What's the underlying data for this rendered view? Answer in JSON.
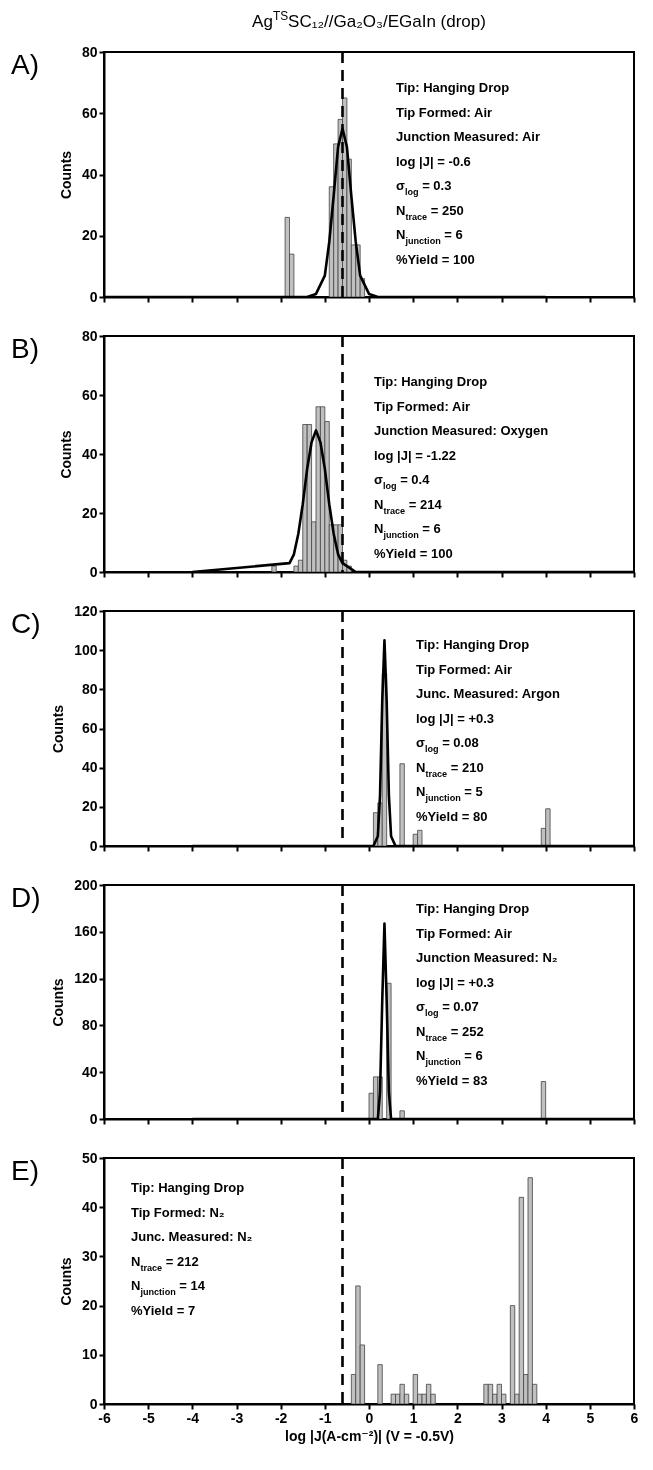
{
  "chart_data": [
    {
      "type": "histogram",
      "title": "Ag$^{TS}$SC₁₂//Ga₂O₃/EGaIn (drop)",
      "ylabel": "Counts",
      "xlim": [
        -6,
        6
      ],
      "xticks": [
        -6,
        -5,
        -4,
        -3,
        -2,
        -1,
        0,
        1,
        2,
        3,
        4,
        5,
        6
      ],
      "ylim": [
        0,
        80
      ],
      "yticks": [
        0,
        20,
        40,
        60,
        80
      ],
      "tick_labels": "y",
      "annotations": [
        "A)",
        "Tip:  Hanging Drop",
        "Tip Formed:  Air",
        "Junction Measured: Air",
        "log |J| = -0.6",
        "σ$_{log}$ = 0.3",
        "N$_{trace}$ = 250",
        "N$_{junction}$ = 6",
        "%Yield = 100"
      ],
      "ref_lines": [
        {
          "axis": "x",
          "value": -0.6,
          "color": "#000000",
          "line_style": "dashed"
        }
      ],
      "series": [
        {
          "type": "histogram",
          "color": "#c0c0c0",
          "bins": [
            -1.9,
            -1.8,
            -1.7,
            -1.6,
            -1.5,
            -1.4,
            -1.3,
            -1.2,
            -1.1,
            -1.0,
            -0.9,
            -0.8,
            -0.7,
            -0.6,
            -0.5,
            -0.4,
            -0.3,
            -0.2,
            -0.1
          ],
          "values": [
            26,
            14,
            0,
            0,
            0,
            0,
            0,
            0,
            0,
            0,
            36,
            50,
            58,
            65,
            45,
            17,
            17,
            6
          ]
        },
        {
          "type": "line",
          "color": "#000000",
          "x": [
            -6,
            -1.4,
            -1.2,
            -1.0,
            -0.9,
            -0.8,
            -0.7,
            -0.6,
            -0.5,
            -0.4,
            -0.3,
            -0.2,
            0,
            0.2,
            4
          ],
          "values": [
            0,
            0,
            1,
            7,
            18,
            33,
            49,
            55,
            49,
            33,
            18,
            7,
            1,
            0,
            0
          ]
        }
      ]
    },
    {
      "type": "histogram",
      "ylabel": "Counts",
      "xlim": [
        -6,
        6
      ],
      "xticks": [
        -6,
        -5,
        -4,
        -3,
        -2,
        -1,
        0,
        1,
        2,
        3,
        4,
        5,
        6
      ],
      "ylim": [
        0,
        80
      ],
      "yticks": [
        0,
        20,
        40,
        60,
        80
      ],
      "tick_labels": "y",
      "annotations": [
        "B)",
        "Tip:  Hanging Drop",
        "Tip Formed:  Air",
        "Junction Measured: Oxygen",
        "log |J| = -1.22",
        "σ$_{log}$ = 0.4",
        "N$_{trace}$ = 214",
        "N$_{junction}$ = 6",
        "%Yield = 100"
      ],
      "ref_lines": [
        {
          "axis": "x",
          "value": -0.6,
          "color": "#000000",
          "line_style": "dashed"
        }
      ],
      "series": [
        {
          "type": "histogram",
          "color": "#c0c0c0",
          "bins": [
            -2.2,
            -2.1,
            -2.0,
            -1.9,
            -1.8,
            -1.7,
            -1.6,
            -1.5,
            -1.4,
            -1.3,
            -1.2,
            -1.1,
            -1.0,
            -0.9,
            -0.8,
            -0.7,
            -0.6,
            -0.5,
            -0.4
          ],
          "values": [
            2,
            0,
            0,
            0,
            0,
            2,
            4,
            50,
            50,
            17,
            56,
            56,
            51,
            16,
            16,
            16,
            4,
            2
          ]
        },
        {
          "type": "line",
          "color": "#000000",
          "x": [
            -4,
            -1.8,
            -1.7,
            -1.6,
            -1.5,
            -1.4,
            -1.3,
            -1.2,
            -1.1,
            -1.0,
            -0.9,
            -0.8,
            -0.7,
            -0.6,
            -0.3,
            6
          ],
          "values": [
            0,
            3,
            6,
            13,
            23,
            35,
            44,
            48,
            44,
            35,
            23,
            13,
            6,
            3,
            0,
            0
          ]
        }
      ]
    },
    {
      "type": "histogram",
      "ylabel": "Counts",
      "xlim": [
        -6,
        6
      ],
      "xticks": [
        -6,
        -5,
        -4,
        -3,
        -2,
        -1,
        0,
        1,
        2,
        3,
        4,
        5,
        6
      ],
      "ylim": [
        0,
        120
      ],
      "yticks": [
        0,
        20,
        40,
        60,
        80,
        100,
        120
      ],
      "tick_labels": "y",
      "annotations": [
        "C)",
        "Tip:  Hanging Drop",
        "Tip Formed:  Air",
        "Junc. Measured: Argon",
        "log |J| = +0.3",
        "σ$_{log}$ = 0.08",
        "N$_{trace}$ = 210",
        "N$_{junction}$ = 5",
        "%Yield = 80"
      ],
      "ref_lines": [
        {
          "axis": "x",
          "value": -0.6,
          "color": "#000000",
          "line_style": "dashed"
        }
      ],
      "series": [
        {
          "type": "histogram",
          "color": "#c0c0c0",
          "bins": [
            0.1,
            0.2,
            0.3,
            0.4,
            0.5,
            0.6,
            0.7,
            0.8,
            0.9,
            1.0,
            1.1,
            1.2,
            1.3,
            1.4,
            1.5,
            1.6,
            1.7,
            1.8,
            1.9,
            2.0,
            2.1,
            2.2,
            2.3,
            2.4,
            2.5,
            2.6,
            2.7,
            2.8,
            2.9,
            3.0,
            3.1,
            3.2,
            3.3,
            3.4,
            3.5,
            3.6,
            3.7,
            3.8,
            3.9,
            4.0,
            4.1
          ],
          "values": [
            17,
            22,
            88,
            0,
            0,
            0,
            42,
            0,
            0,
            6,
            8,
            0,
            0,
            0,
            0,
            0,
            0,
            0,
            0,
            0,
            0,
            0,
            0,
            0,
            0,
            0,
            0,
            0,
            0,
            0,
            0,
            0,
            0,
            0,
            0,
            0,
            0,
            0,
            9,
            19
          ]
        },
        {
          "type": "line",
          "color": "#000000",
          "x": [
            -4,
            0.1,
            0.2,
            0.25,
            0.3,
            0.35,
            0.4,
            0.45,
            0.5,
            0.6,
            6
          ],
          "values": [
            0,
            0,
            5,
            26,
            74,
            105,
            74,
            26,
            5,
            0,
            0
          ]
        }
      ]
    },
    {
      "type": "histogram",
      "ylabel": "Counts",
      "xlim": [
        -6,
        6
      ],
      "xticks": [
        -6,
        -5,
        -4,
        -3,
        -2,
        -1,
        0,
        1,
        2,
        3,
        4,
        5,
        6
      ],
      "ylim": [
        0,
        200
      ],
      "yticks": [
        0,
        40,
        80,
        120,
        160,
        200
      ],
      "tick_labels": "y",
      "annotations": [
        "D)",
        "Tip:  Hanging Drop",
        "Tip Formed:  Air",
        "Junction Measured: N₂",
        "log |J| = +0.3",
        "σ$_{log}$ = 0.07",
        "N$_{trace}$ = 252",
        "N$_{junction}$ = 6",
        "%Yield = 83"
      ],
      "ref_lines": [
        {
          "axis": "x",
          "value": -0.6,
          "color": "#000000",
          "line_style": "dashed"
        }
      ],
      "series": [
        {
          "type": "histogram",
          "color": "#c0c0c0",
          "bins": [
            0.0,
            0.1,
            0.2,
            0.3,
            0.4,
            0.5,
            0.6,
            0.7,
            0.8,
            0.9,
            1.0,
            1.1,
            1.2,
            1.3,
            1.4,
            1.5,
            1.6,
            1.7,
            1.8,
            1.9,
            2.0,
            2.1,
            2.2,
            2.3,
            2.4,
            2.5,
            2.6,
            2.7,
            2.8,
            2.9,
            3.0,
            3.1,
            3.2,
            3.3,
            3.4,
            3.5,
            3.6,
            3.7,
            3.8,
            3.9,
            4.0
          ],
          "values": [
            22,
            36,
            36,
            0,
            116,
            0,
            0,
            7,
            0,
            0,
            0,
            0,
            0,
            0,
            0,
            0,
            0,
            0,
            0,
            0,
            0,
            0,
            0,
            0,
            0,
            0,
            0,
            0,
            0,
            0,
            0,
            0,
            0,
            0,
            0,
            0,
            0,
            0,
            0,
            32
          ]
        },
        {
          "type": "line",
          "color": "#000000",
          "x": [
            -4,
            0.2,
            0.25,
            0.3,
            0.35,
            0.4,
            0.45,
            0.5,
            6
          ],
          "values": [
            0,
            0,
            23,
            101,
            167,
            101,
            23,
            0,
            0
          ]
        }
      ]
    },
    {
      "type": "histogram",
      "xlabel": "log |J(A-cm⁻²)| (V = -0.5V)",
      "ylabel": "Counts",
      "xlim": [
        -6,
        6
      ],
      "xticks": [
        -6,
        -5,
        -4,
        -3,
        -2,
        -1,
        0,
        1,
        2,
        3,
        4,
        5,
        6
      ],
      "ylim": [
        0,
        50
      ],
      "yticks": [
        0,
        10,
        20,
        30,
        40,
        50
      ],
      "annotations": [
        "E)",
        "Tip:  Hanging Drop",
        "Tip Formed:  N₂",
        "Junc. Measured: N₂",
        "N$_{trace}$ = 212",
        "N$_{junction}$ = 14",
        "%Yield = 7"
      ],
      "ref_lines": [
        {
          "axis": "x",
          "value": -0.6,
          "color": "#000000",
          "line_style": "dashed"
        }
      ],
      "color": "#c0c0c0",
      "bins": [
        -0.4,
        -0.3,
        -0.2,
        -0.1,
        0.0,
        0.1,
        0.2,
        0.3,
        0.4,
        0.5,
        0.6,
        0.7,
        0.8,
        0.9,
        1.0,
        1.1,
        1.2,
        1.3,
        1.4,
        1.5,
        1.6,
        1.7,
        1.8,
        1.9,
        2.0,
        2.1,
        2.2,
        2.3,
        2.4,
        2.5,
        2.6,
        2.7,
        2.8,
        2.9,
        3.0,
        3.1,
        3.2,
        3.3,
        3.4,
        3.5,
        3.6,
        3.7,
        3.8
      ],
      "values": [
        6,
        24,
        12,
        0,
        0,
        0,
        8,
        0,
        0,
        2,
        2,
        4,
        2,
        0,
        6,
        2,
        2,
        4,
        2,
        0,
        0,
        0,
        0,
        0,
        0,
        0,
        0,
        0,
        0,
        0,
        4,
        4,
        2,
        4,
        2,
        0,
        20,
        2,
        42,
        6,
        46,
        4
      ]
    }
  ]
}
